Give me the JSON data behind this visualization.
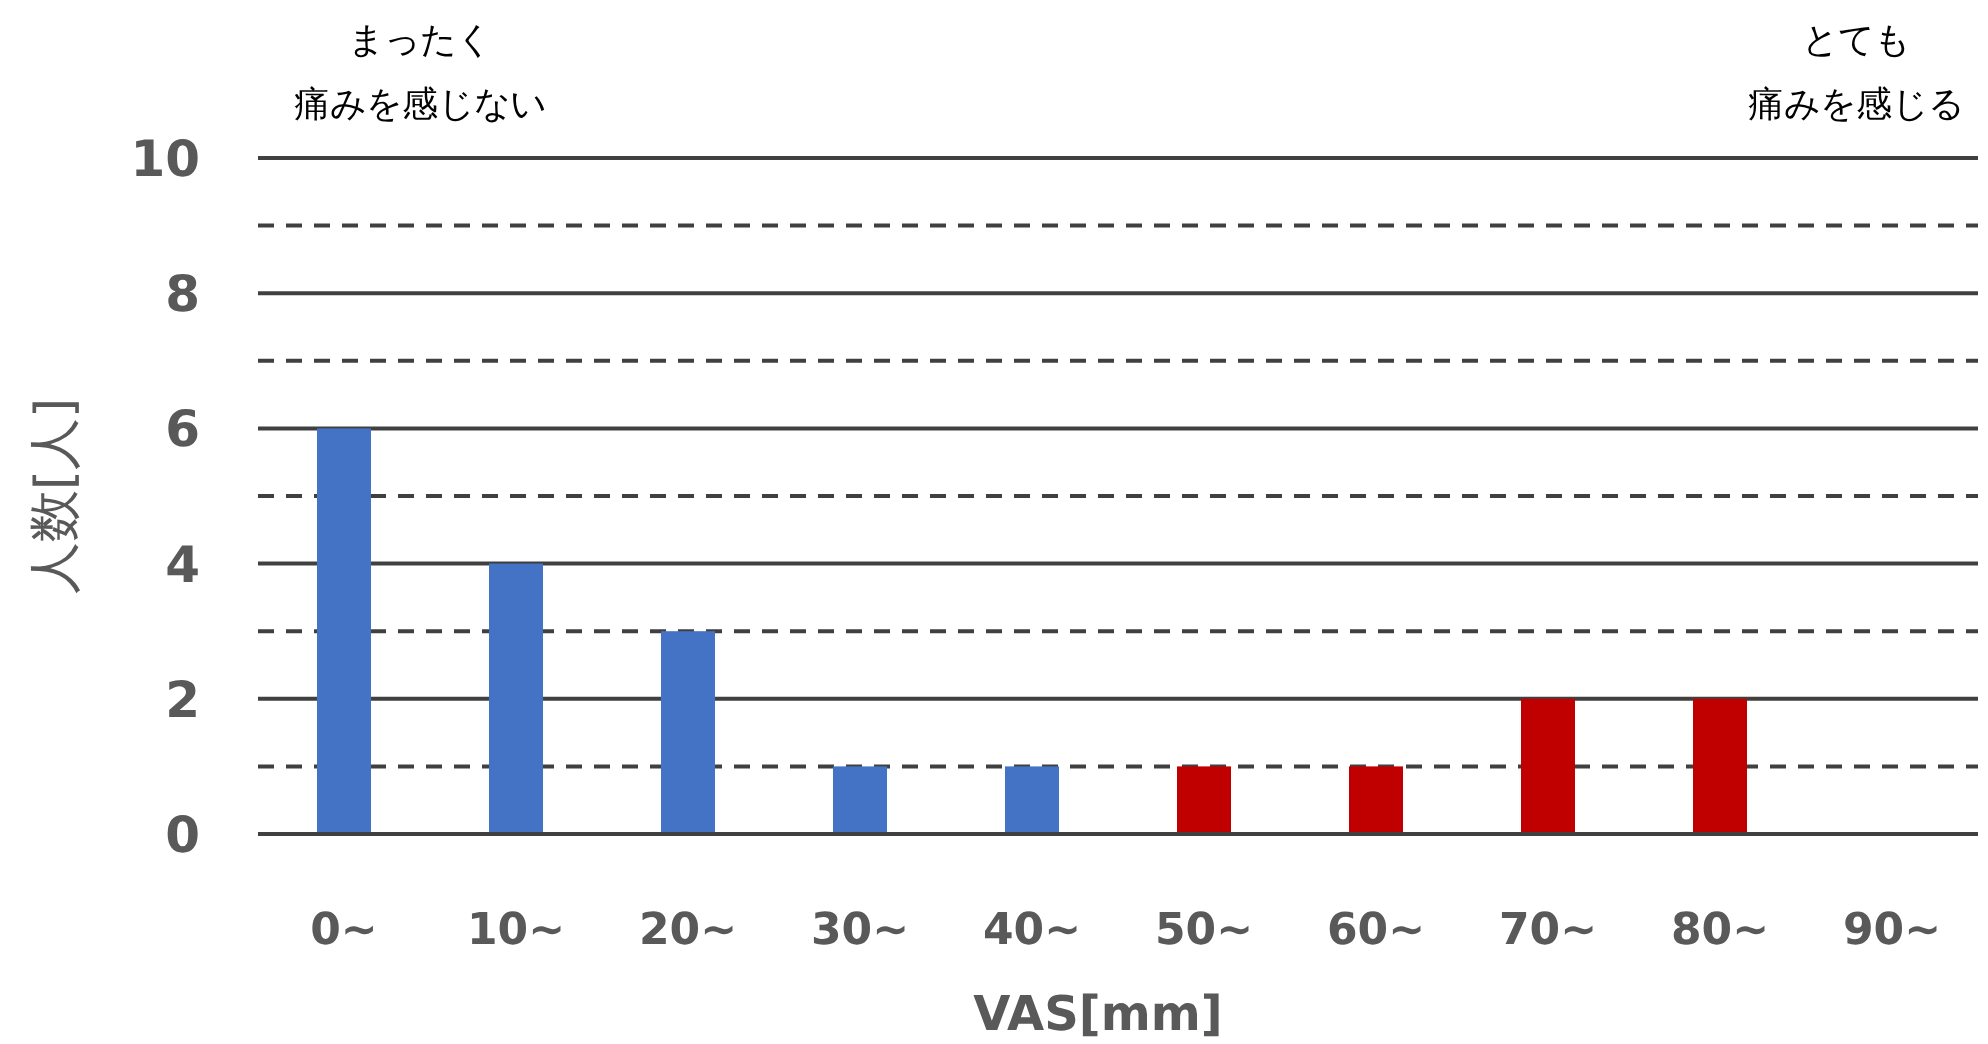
{
  "chart_data": {
    "type": "bar",
    "xlabel": "VAS[mm]",
    "ylabel": "人数[人]",
    "categories": [
      "0~",
      "10~",
      "20~",
      "30~",
      "40~",
      "50~",
      "60~",
      "70~",
      "80~",
      "90~"
    ],
    "values": [
      6,
      4,
      3,
      1,
      1,
      1,
      1,
      2,
      2,
      0
    ],
    "colors": [
      "#4472c4",
      "#4472c4",
      "#4472c4",
      "#4472c4",
      "#4472c4",
      "#c00000",
      "#c00000",
      "#c00000",
      "#c00000",
      "#c00000"
    ],
    "ylim": [
      0,
      10
    ],
    "yticks": [
      0,
      {
        "value": 1,
        "label": null
      },
      2,
      {
        "value": 3,
        "label": null
      },
      4,
      {
        "value": 5,
        "label": null
      },
      6,
      {
        "value": 7,
        "label": null
      },
      8,
      {
        "value": 9,
        "label": null
      },
      10
    ],
    "grid": "y",
    "annotations": [
      "まったく",
      "痛みを感じない",
      "とても",
      "痛みを感じる"
    ]
  }
}
